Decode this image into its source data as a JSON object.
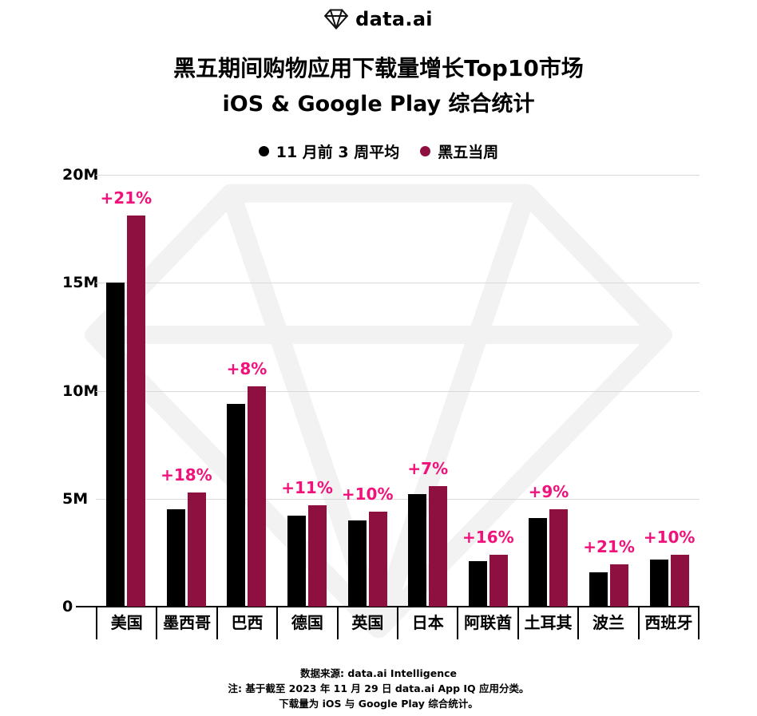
{
  "brand": {
    "logo_text": "data.ai"
  },
  "header": {
    "title_line1": "黑五期间购物应用下载量增长Top10市场",
    "title_line2": "iOS & Google Play 综合统计"
  },
  "legend": [
    {
      "label": "11 月前 3 周平均",
      "color": "#000000"
    },
    {
      "label": "黑五当周",
      "color": "#8E1041"
    }
  ],
  "chart_data": {
    "type": "bar",
    "title": "黑五期间购物应用下载量增长Top10市场 iOS & Google Play 综合统计",
    "categories": [
      "美国",
      "墨西哥",
      "巴西",
      "德国",
      "英国",
      "日本",
      "阿联酋",
      "土耳其",
      "波兰",
      "西班牙"
    ],
    "series": [
      {
        "name": "11 月前 3 周平均",
        "color": "#000000",
        "values": [
          15.0,
          4.5,
          9.4,
          4.2,
          4.0,
          5.2,
          2.1,
          4.1,
          1.6,
          2.2
        ]
      },
      {
        "name": "黑五当周",
        "color": "#8E1041",
        "values": [
          18.1,
          5.3,
          10.2,
          4.7,
          4.4,
          5.6,
          2.4,
          4.5,
          1.95,
          2.4
        ]
      }
    ],
    "growth_labels": [
      "+21%",
      "+18%",
      "+8%",
      "+11%",
      "+10%",
      "+7%",
      "+16%",
      "+9%",
      "+21%",
      "+10%"
    ],
    "unit": "M downloads",
    "ylim": [
      0,
      20
    ],
    "yticks": [
      "0",
      "5M",
      "10M",
      "15M",
      "20M"
    ],
    "grid": "horizontal",
    "legend_position": "top"
  },
  "footer": {
    "line1": "数据来源: data.ai Intelligence",
    "line2": "注: 基于截至 2023 年 11 月 29 日 data.ai App IQ 应用分类。",
    "line3": "下载量为 iOS 与 Google Play 综合统计。"
  },
  "colors": {
    "bar_prev": "#000000",
    "bar_black_friday": "#8E1041",
    "growth": "#F0117A",
    "grid": "#D9D9D9",
    "axis": "#000000",
    "watermark": "#F2F2F2"
  }
}
